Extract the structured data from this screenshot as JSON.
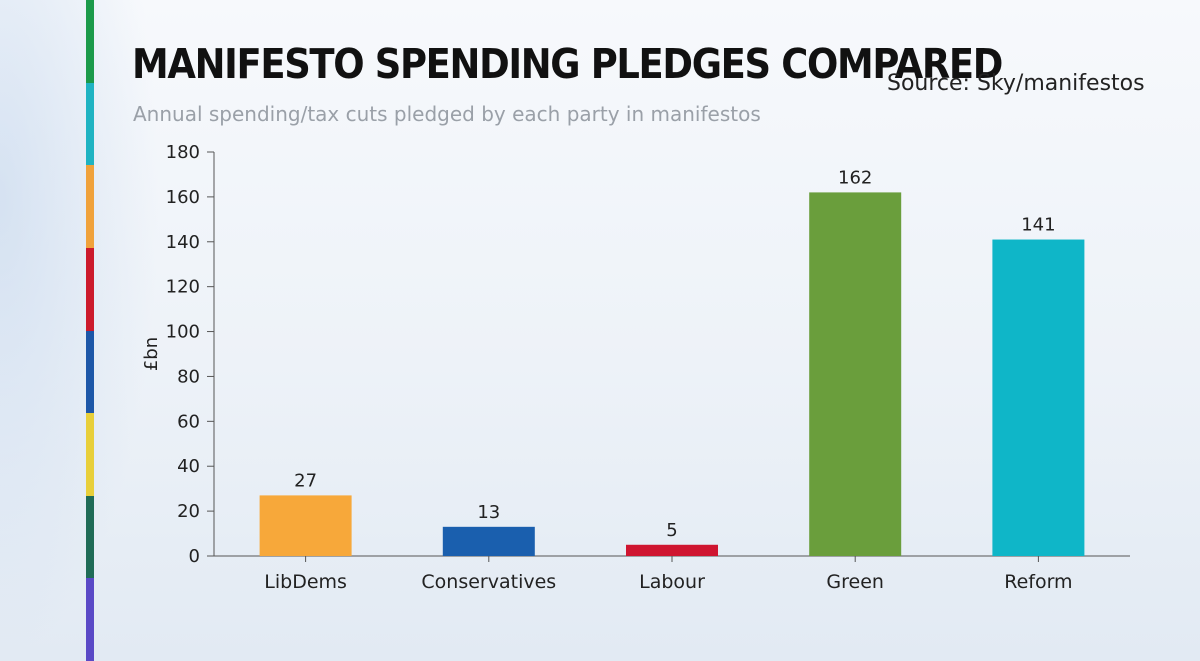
{
  "title": "MANIFESTO SPENDING PLEDGES COMPARED",
  "source": "Source: Sky/manifestos",
  "subtitle": "Annual spending/tax cuts pledged by each party in manifestos",
  "strip_colors": [
    "#1b9a4a",
    "#1fb3c2",
    "#f0a23b",
    "#cc1a2c",
    "#1d57a8",
    "#e8cf3a",
    "#1f6b56",
    "#5a49c6"
  ],
  "chart_data": {
    "type": "bar",
    "categories": [
      "LibDems",
      "Conservatives",
      "Labour",
      "Green",
      "Reform"
    ],
    "values": [
      27,
      13,
      5,
      162,
      141
    ],
    "data_labels": [
      "27",
      "13",
      "5",
      "162",
      "141"
    ],
    "colors": [
      "#f7a83a",
      "#1a5fae",
      "#cf1530",
      "#6a9e3c",
      "#0fb6c8"
    ],
    "ylabel": "£bn",
    "ylim": [
      0,
      180
    ],
    "yticks": [
      0,
      20,
      40,
      60,
      80,
      100,
      120,
      140,
      160,
      180
    ],
    "grid": false,
    "legend": "none"
  }
}
